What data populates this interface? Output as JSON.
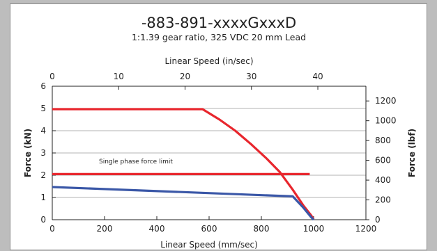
{
  "chart_data": {
    "type": "line",
    "title": "-883-891-xxxxGxxxD",
    "subtitle": "1:1.39 gear ratio, 325 VDC 20 mm Lead",
    "xlabel": "Linear Speed (mm/sec)",
    "x2label": "Linear Speed (in/sec)",
    "ylabel": "Force (kN)",
    "y2label": "Force (lbf)",
    "xlim": [
      0,
      1200
    ],
    "x2lim": [
      0,
      47.24
    ],
    "ylim": [
      0,
      6
    ],
    "y2lim": [
      0,
      1348.9
    ],
    "xticks": [
      "0",
      "200",
      "400",
      "600",
      "800",
      "1000",
      "1200"
    ],
    "x2ticks": [
      "0",
      "10",
      "20",
      "30",
      "40"
    ],
    "yticks": [
      "0",
      "1",
      "2",
      "3",
      "4",
      "5",
      "6"
    ],
    "y2ticks": [
      "0",
      "200",
      "400",
      "600",
      "800",
      "1000",
      "1200"
    ],
    "grid": "horizontal",
    "annotation": "Single phase force limit",
    "series": [
      {
        "color": "#e8262d",
        "points": [
          [
            0,
            4.97
          ],
          [
            575,
            4.97
          ],
          [
            640,
            4.5
          ],
          [
            700,
            4.0
          ],
          [
            760,
            3.4
          ],
          [
            820,
            2.75
          ],
          [
            870,
            2.15
          ],
          [
            920,
            1.35
          ],
          [
            960,
            0.65
          ],
          [
            990,
            0.2
          ],
          [
            1000,
            0.02
          ]
        ]
      },
      {
        "color": "#e8262d",
        "points": [
          [
            0,
            2.05
          ],
          [
            985,
            2.05
          ]
        ]
      },
      {
        "color": "#3a57a7",
        "points": [
          [
            0,
            1.47
          ],
          [
            920,
            1.05
          ],
          [
            960,
            0.55
          ],
          [
            990,
            0.12
          ],
          [
            1000,
            0.0
          ]
        ]
      }
    ]
  }
}
